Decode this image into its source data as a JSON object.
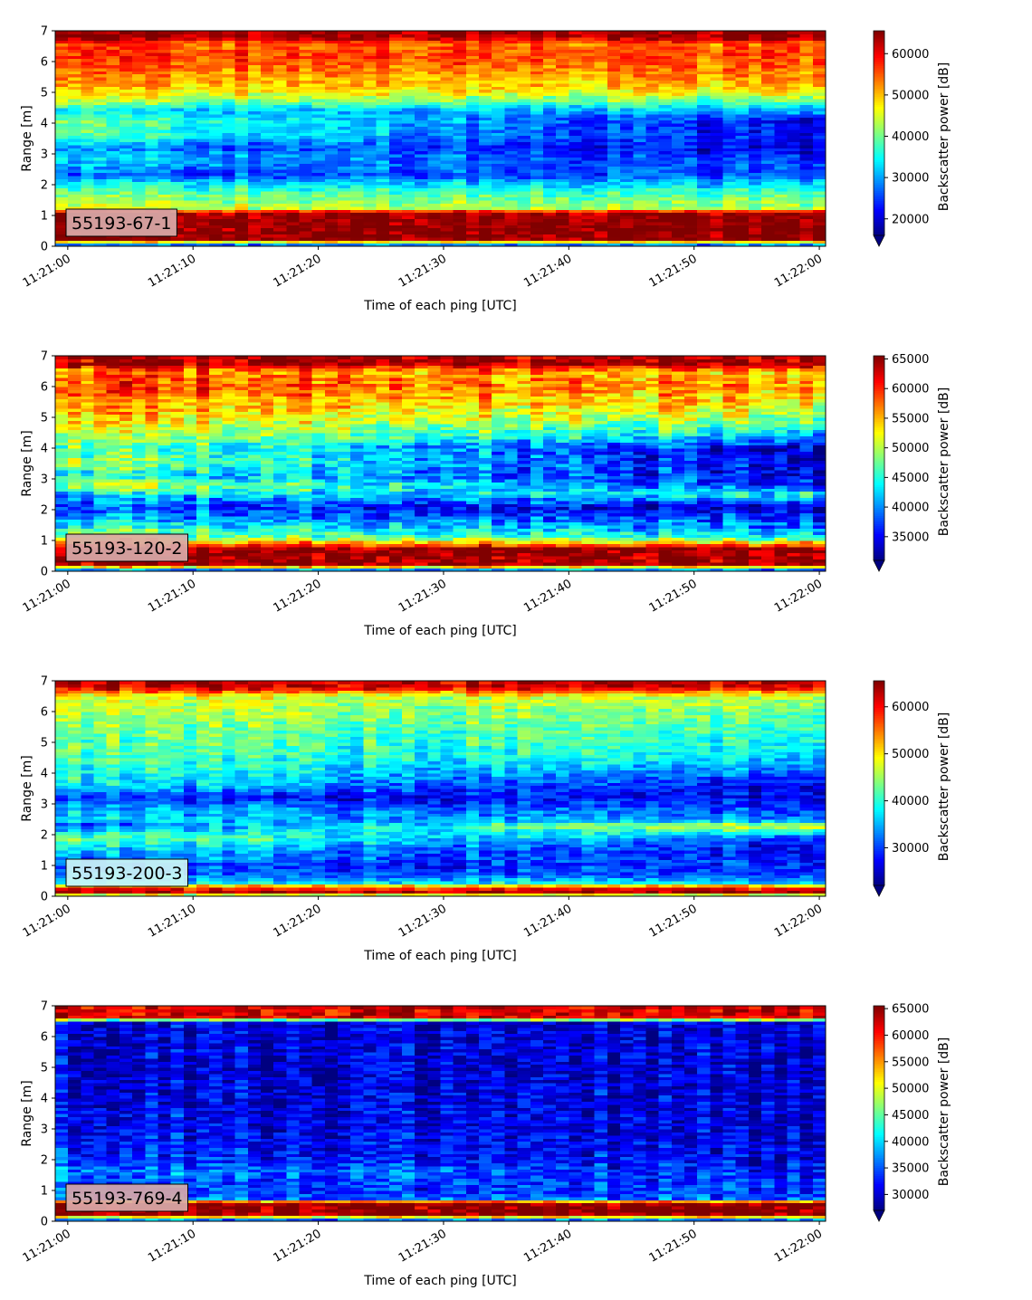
{
  "chart_data": [
    {
      "type": "heatmap",
      "annotation": "55193-67-1",
      "xlabel": "Time of each ping [UTC]",
      "ylabel": "Range [m]",
      "colorbar_label": "Backscatter power [dB]",
      "colormap": "jet",
      "x_ticks": [
        "11:21:00",
        "11:21:10",
        "11:21:20",
        "11:21:30",
        "11:21:40",
        "11:21:50",
        "11:22:00"
      ],
      "x_range_seconds": [
        -1,
        60.5
      ],
      "ylim": [
        0,
        7
      ],
      "y_ticks": [
        0,
        1,
        2,
        3,
        4,
        5,
        6,
        7
      ],
      "clim": [
        16000,
        65535
      ],
      "colorbar_ticks": [
        20000,
        30000,
        40000,
        50000,
        60000
      ],
      "annotation_box_color": "#d9aaa9",
      "profile": {
        "range_m": [
          0,
          0.25,
          0.8,
          1.1,
          1.25,
          1.7,
          2.1,
          2.3,
          2.6,
          3.0,
          3.2,
          3.6,
          4.1,
          4.4,
          4.7,
          5.1,
          5.6,
          6.2,
          6.6,
          6.8,
          7.0
        ],
        "power_start": [
          20000,
          65000,
          65000,
          64000,
          45000,
          40000,
          33000,
          25000,
          30000,
          33000,
          28000,
          38000,
          40000,
          32000,
          42000,
          49000,
          53000,
          57000,
          55000,
          64000,
          64000
        ],
        "power_end": [
          20000,
          65000,
          65000,
          64000,
          42000,
          38000,
          30000,
          26000,
          25000,
          22000,
          20000,
          21000,
          20000,
          30000,
          38000,
          48000,
          52000,
          56000,
          54000,
          64000,
          64000
        ]
      }
    },
    {
      "type": "heatmap",
      "annotation": "55193-120-2",
      "xlabel": "Time of each ping [UTC]",
      "ylabel": "Range [m]",
      "colorbar_label": "Backscatter power [dB]",
      "colormap": "jet",
      "x_ticks": [
        "11:21:00",
        "11:21:10",
        "11:21:20",
        "11:21:30",
        "11:21:40",
        "11:21:50",
        "11:22:00"
      ],
      "x_range_seconds": [
        -1,
        60.5
      ],
      "ylim": [
        0,
        7
      ],
      "y_ticks": [
        0,
        1,
        2,
        3,
        4,
        5,
        6,
        7
      ],
      "clim": [
        31000,
        65535
      ],
      "colorbar_ticks": [
        35000,
        40000,
        45000,
        50000,
        55000,
        60000,
        65000
      ],
      "annotation_box_color": "#d9aaa9",
      "profile": {
        "range_m": [
          0,
          0.25,
          0.75,
          0.9,
          1.1,
          1.4,
          1.8,
          2.1,
          2.5,
          2.8,
          3.1,
          3.5,
          4.0,
          4.5,
          5.0,
          5.5,
          6.0,
          6.5,
          6.75,
          7.0
        ],
        "power_start": [
          35000,
          65000,
          65000,
          58000,
          50000,
          46000,
          40000,
          38000,
          42000,
          52000,
          44000,
          50000,
          48000,
          51000,
          54000,
          56000,
          60000,
          57000,
          64000,
          64000
        ],
        "power_end": [
          35000,
          65000,
          65000,
          56000,
          45000,
          40000,
          37000,
          33000,
          45000,
          36000,
          35000,
          33000,
          33000,
          43000,
          49000,
          53000,
          55000,
          55000,
          64000,
          64000
        ]
      }
    },
    {
      "type": "heatmap",
      "annotation": "55193-200-3",
      "xlabel": "Time of each ping [UTC]",
      "ylabel": "Range [m]",
      "colorbar_label": "Backscatter power [dB]",
      "colormap": "jet",
      "x_ticks": [
        "11:21:00",
        "11:21:10",
        "11:21:20",
        "11:21:30",
        "11:21:40",
        "11:21:50",
        "11:22:00"
      ],
      "x_range_seconds": [
        -1,
        60.5
      ],
      "ylim": [
        0,
        7
      ],
      "y_ticks": [
        0,
        1,
        2,
        3,
        4,
        5,
        6,
        7
      ],
      "clim": [
        22000,
        65535
      ],
      "colorbar_ticks": [
        30000,
        40000,
        50000,
        60000
      ],
      "annotation_box_color": "#cdf5f5",
      "profile": {
        "range_m": [
          0,
          0.1,
          0.3,
          0.45,
          0.7,
          1.0,
          1.3,
          1.6,
          1.9,
          2.3,
          2.5,
          2.9,
          3.2,
          3.6,
          4.1,
          4.7,
          5.3,
          5.9,
          6.5,
          6.8,
          7.0
        ],
        "power_start": [
          30000,
          65000,
          58000,
          38000,
          33000,
          30000,
          34000,
          38000,
          44000,
          30000,
          36000,
          35000,
          27000,
          38000,
          40000,
          42000,
          43000,
          46000,
          48000,
          62000,
          62000
        ],
        "power_end": [
          30000,
          65000,
          58000,
          37000,
          30000,
          29000,
          28000,
          27000,
          30000,
          49000,
          33000,
          29000,
          27000,
          26000,
          32000,
          38000,
          40000,
          42000,
          46000,
          62000,
          62000
        ]
      }
    },
    {
      "type": "heatmap",
      "annotation": "55193-769-4",
      "xlabel": "Time of each ping [UTC]",
      "ylabel": "Range [m]",
      "colorbar_label": "Backscatter power [dB]",
      "colormap": "jet",
      "x_ticks": [
        "11:21:00",
        "11:21:10",
        "11:21:20",
        "11:21:30",
        "11:21:40",
        "11:21:50",
        "11:22:00"
      ],
      "x_range_seconds": [
        -1,
        60.5
      ],
      "ylim": [
        0,
        7
      ],
      "y_ticks": [
        0,
        1,
        2,
        3,
        4,
        5,
        6,
        7
      ],
      "clim": [
        27000,
        65535
      ],
      "colorbar_ticks": [
        30000,
        35000,
        40000,
        45000,
        50000,
        55000,
        60000,
        65000
      ],
      "annotation_box_color": "#d9aaa9",
      "profile": {
        "range_m": [
          0,
          0.25,
          0.6,
          0.75,
          1.0,
          1.3,
          1.6,
          2.0,
          2.5,
          3.0,
          3.5,
          4.0,
          5.0,
          6.0,
          6.5,
          6.6,
          6.8,
          7.0
        ],
        "power_start": [
          30000,
          65000,
          65000,
          36000,
          34000,
          35000,
          38000,
          34000,
          33000,
          32000,
          32000,
          31000,
          31000,
          31000,
          31000,
          62000,
          62000,
          62000
        ],
        "power_end": [
          30000,
          65000,
          65000,
          35000,
          33000,
          33000,
          32000,
          31000,
          30500,
          30000,
          30000,
          30000,
          30000,
          30000,
          30500,
          62000,
          62000,
          62000
        ]
      }
    }
  ]
}
